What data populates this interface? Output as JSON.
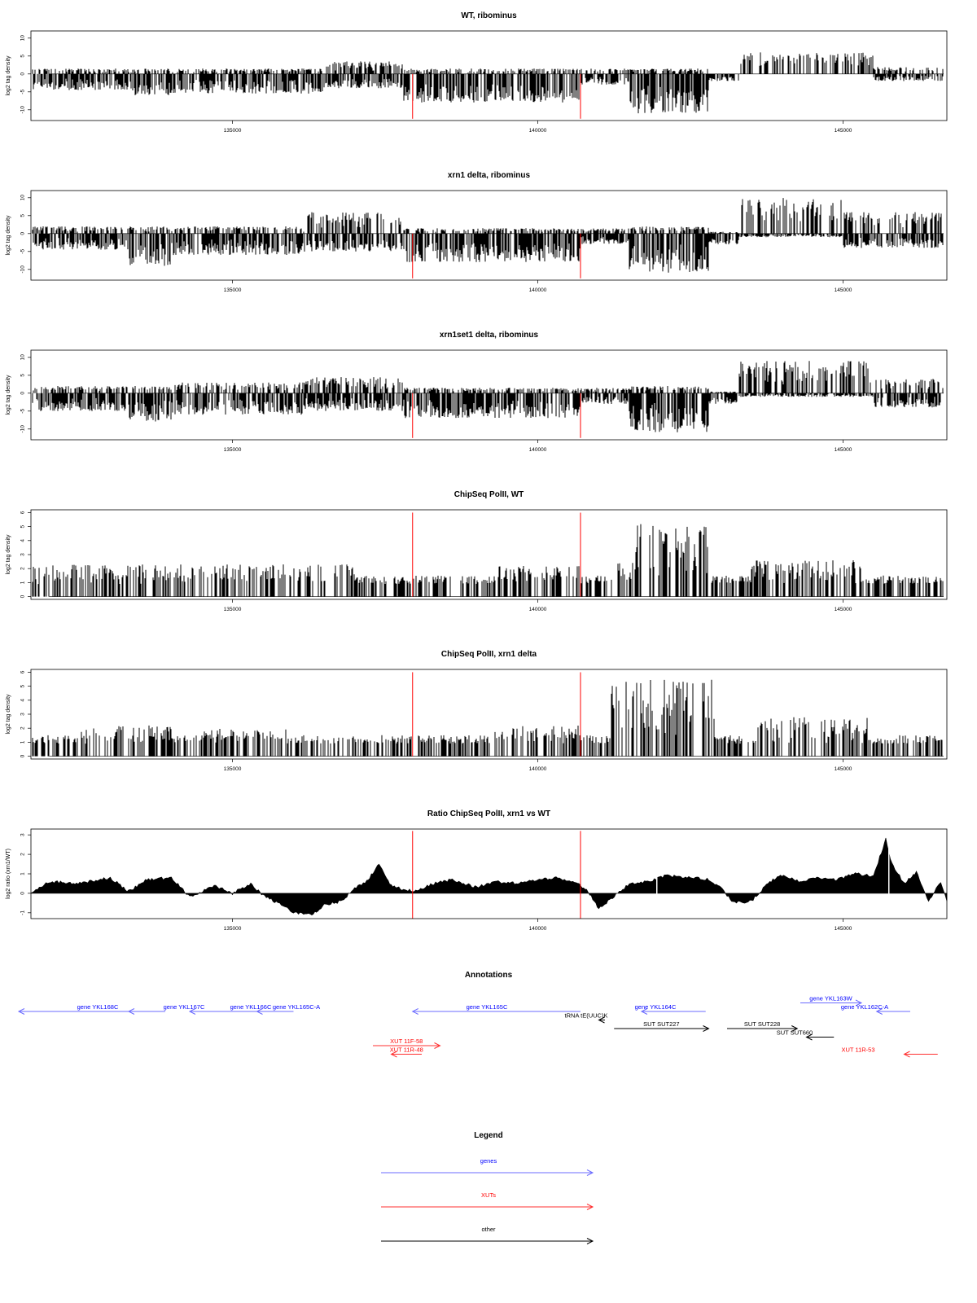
{
  "colors": {
    "gene": "#0000ff",
    "xut": "#ff0000",
    "other": "#000000",
    "marker": "#ff0000",
    "gene_arrow": "#6b6bff",
    "xut_arrow": "#ff3030"
  },
  "chart_data": [
    {
      "id": "wt_ribominus",
      "type": "bar",
      "title": "WT, ribominus",
      "ylabel": "log2 tag density",
      "xlim": [
        131700,
        146700
      ],
      "ylim": [
        -13,
        12
      ],
      "yticks": [
        -10,
        -5,
        0,
        5,
        10
      ],
      "xticks": [
        135000,
        140000,
        145000
      ],
      "xtick_labels": [
        "135000",
        "140000",
        "145000"
      ],
      "markers": [
        137950,
        140700
      ],
      "marker_range": [
        -12.5,
        0
      ],
      "profile_approx": [
        {
          "start": 131700,
          "end": 133300,
          "min": -4.5,
          "max": 1.5
        },
        {
          "start": 133300,
          "end": 134000,
          "min": -6,
          "max": 1.5
        },
        {
          "start": 134000,
          "end": 136500,
          "min": -5.5,
          "max": 1.5
        },
        {
          "start": 136500,
          "end": 137800,
          "min": -4,
          "max": 3.5
        },
        {
          "start": 137800,
          "end": 140700,
          "min": -8,
          "max": 1.5
        },
        {
          "start": 140700,
          "end": 141500,
          "min": -3,
          "max": 1.5
        },
        {
          "start": 141500,
          "end": 142800,
          "min": -11,
          "max": 1.5
        },
        {
          "start": 142800,
          "end": 143300,
          "min": -2,
          "max": 0
        },
        {
          "start": 143300,
          "end": 145500,
          "min": 0,
          "max": 6
        },
        {
          "start": 145500,
          "end": 146700,
          "min": -2,
          "max": 2
        }
      ]
    },
    {
      "id": "xrn1_ribominus",
      "type": "bar",
      "title": "xrn1 delta, ribominus",
      "ylabel": "log2 tag density",
      "xlim": [
        131700,
        146700
      ],
      "ylim": [
        -13,
        12
      ],
      "yticks": [
        -10,
        -5,
        0,
        5,
        10
      ],
      "xticks": [
        135000,
        140000,
        145000
      ],
      "xtick_labels": [
        "135000",
        "140000",
        "145000"
      ],
      "markers": [
        137950,
        140700
      ],
      "marker_range": [
        -12.5,
        0
      ],
      "profile_approx": [
        {
          "start": 131700,
          "end": 133300,
          "min": -4.5,
          "max": 2
        },
        {
          "start": 133300,
          "end": 134000,
          "min": -9,
          "max": 2
        },
        {
          "start": 134000,
          "end": 136200,
          "min": -6,
          "max": 2
        },
        {
          "start": 136200,
          "end": 137800,
          "min": -5,
          "max": 6
        },
        {
          "start": 137800,
          "end": 140700,
          "min": -8,
          "max": 1.5
        },
        {
          "start": 140700,
          "end": 141500,
          "min": -3,
          "max": 1.5
        },
        {
          "start": 141500,
          "end": 142800,
          "min": -11,
          "max": 2
        },
        {
          "start": 142800,
          "end": 143300,
          "min": -3,
          "max": 0.5
        },
        {
          "start": 143300,
          "end": 145000,
          "min": -1,
          "max": 10
        },
        {
          "start": 145000,
          "end": 146700,
          "min": -4,
          "max": 6
        }
      ]
    },
    {
      "id": "xrn1set1_ribominus",
      "type": "bar",
      "title": "xrn1set1 delta, ribominus",
      "ylabel": "log2 tag density",
      "xlim": [
        131700,
        146700
      ],
      "ylim": [
        -13,
        12
      ],
      "yticks": [
        -10,
        -5,
        0,
        5,
        10
      ],
      "xticks": [
        135000,
        140000,
        145000
      ],
      "xtick_labels": [
        "135000",
        "140000",
        "145000"
      ],
      "markers": [
        137950,
        140700
      ],
      "marker_range": [
        -12.5,
        0
      ],
      "profile_approx": [
        {
          "start": 131700,
          "end": 133300,
          "min": -5,
          "max": 2
        },
        {
          "start": 133300,
          "end": 134000,
          "min": -8,
          "max": 2
        },
        {
          "start": 134000,
          "end": 136200,
          "min": -6,
          "max": 3
        },
        {
          "start": 136200,
          "end": 137800,
          "min": -5,
          "max": 4.5
        },
        {
          "start": 137800,
          "end": 140700,
          "min": -7,
          "max": 1.5
        },
        {
          "start": 140700,
          "end": 141500,
          "min": -3,
          "max": 1.5
        },
        {
          "start": 141500,
          "end": 142800,
          "min": -11,
          "max": 2
        },
        {
          "start": 142800,
          "end": 143300,
          "min": -3,
          "max": 0.5
        },
        {
          "start": 143300,
          "end": 145500,
          "min": -1,
          "max": 9
        },
        {
          "start": 145500,
          "end": 146700,
          "min": -4,
          "max": 4
        }
      ]
    },
    {
      "id": "chipseq_wt",
      "type": "bar",
      "title": "ChipSeq PolII, WT",
      "ylabel": "log2 tag density",
      "xlim": [
        131700,
        146700
      ],
      "ylim": [
        -0.2,
        6.2
      ],
      "yticks": [
        0,
        1,
        2,
        3,
        4,
        5,
        6
      ],
      "xticks": [
        135000,
        140000,
        145000
      ],
      "xtick_labels": [
        "135000",
        "140000",
        "145000"
      ],
      "markers": [
        137950,
        140700
      ],
      "marker_range": [
        0,
        6
      ],
      "profile_approx": [
        {
          "start": 131700,
          "end": 137000,
          "min": 0,
          "max": 2.3
        },
        {
          "start": 137000,
          "end": 137850,
          "min": 0,
          "max": 1
        },
        {
          "start": 137850,
          "end": 138700,
          "min": 0,
          "max": 1.5
        },
        {
          "start": 138700,
          "end": 139300,
          "min": 0,
          "max": 0.8
        },
        {
          "start": 139300,
          "end": 140700,
          "min": 0,
          "max": 2.2
        },
        {
          "start": 140700,
          "end": 141200,
          "min": 0,
          "max": 0.8
        },
        {
          "start": 141200,
          "end": 141600,
          "min": 0,
          "max": 2.5
        },
        {
          "start": 141600,
          "end": 142800,
          "min": 0,
          "max": 5.2
        },
        {
          "start": 142800,
          "end": 143500,
          "min": 0,
          "max": 0.8
        },
        {
          "start": 143500,
          "end": 145300,
          "min": 0,
          "max": 2.6
        },
        {
          "start": 145300,
          "end": 146700,
          "min": 0,
          "max": 1
        }
      ]
    },
    {
      "id": "chipseq_xrn1",
      "type": "bar",
      "title": "ChipSeq PolII, xrn1 delta",
      "ylabel": "log2 tag density",
      "xlim": [
        131700,
        146700
      ],
      "ylim": [
        -0.2,
        6.2
      ],
      "yticks": [
        0,
        1,
        2,
        3,
        4,
        5,
        6
      ],
      "xticks": [
        135000,
        140000,
        145000
      ],
      "xtick_labels": [
        "135000",
        "140000",
        "145000"
      ],
      "markers": [
        137950,
        140700
      ],
      "marker_range": [
        0,
        6
      ],
      "profile_approx": [
        {
          "start": 131700,
          "end": 132500,
          "min": 0,
          "max": 1
        },
        {
          "start": 132500,
          "end": 134000,
          "min": 0,
          "max": 2.2
        },
        {
          "start": 134000,
          "end": 134500,
          "min": 0,
          "max": 0.8
        },
        {
          "start": 134500,
          "end": 135900,
          "min": 0,
          "max": 2
        },
        {
          "start": 135900,
          "end": 137800,
          "min": 0,
          "max": 1
        },
        {
          "start": 137800,
          "end": 139300,
          "min": 0,
          "max": 1
        },
        {
          "start": 139300,
          "end": 140700,
          "min": 0,
          "max": 2.2
        },
        {
          "start": 140700,
          "end": 141200,
          "min": 0,
          "max": 0.6
        },
        {
          "start": 141200,
          "end": 142900,
          "min": 0,
          "max": 5.5
        },
        {
          "start": 142900,
          "end": 143600,
          "min": 0,
          "max": 0.6
        },
        {
          "start": 143600,
          "end": 145400,
          "min": 0,
          "max": 2.8
        },
        {
          "start": 145400,
          "end": 146700,
          "min": 0,
          "max": 0.8
        }
      ]
    },
    {
      "id": "ratio_chipseq",
      "type": "area",
      "title": "Ratio ChipSeq PolII, xrn1 vs WT",
      "ylabel": "log2 ratio (xrn1/WT)",
      "xlim": [
        131700,
        146700
      ],
      "ylim": [
        -1.3,
        3.3
      ],
      "yticks": [
        -1,
        0,
        1,
        2,
        3
      ],
      "xticks": [
        135000,
        140000,
        145000
      ],
      "xtick_labels": [
        "135000",
        "140000",
        "145000"
      ],
      "markers": [
        137950,
        140700
      ],
      "marker_range": [
        -1.3,
        3.2
      ],
      "x": [
        131700,
        132000,
        132500,
        133000,
        133300,
        133600,
        134000,
        134300,
        134700,
        135000,
        135300,
        135500,
        135800,
        136000,
        136300,
        136500,
        136800,
        137000,
        137200,
        137400,
        137600,
        137800,
        138000,
        138300,
        138600,
        139000,
        139300,
        139700,
        140000,
        140300,
        140600,
        140800,
        141000,
        141200,
        141500,
        141800,
        142100,
        142500,
        142800,
        143000,
        143200,
        143500,
        143800,
        144000,
        144300,
        144600,
        144900,
        145200,
        145500,
        145700,
        145800,
        146000,
        146200,
        146400,
        146600,
        146700
      ],
      "y": [
        0,
        0.6,
        0.5,
        0.8,
        0.1,
        0.7,
        0.8,
        -0.2,
        0.4,
        0,
        0.5,
        -0.1,
        -0.6,
        -1,
        -1.1,
        -0.6,
        -0.4,
        0.3,
        0.6,
        1.5,
        0.4,
        0.2,
        0.1,
        0.5,
        0.7,
        0.3,
        0.6,
        0.5,
        0.7,
        0.8,
        0.6,
        0.2,
        -0.8,
        -0.3,
        0.5,
        0.6,
        0.9,
        0.8,
        0.7,
        0.3,
        -0.5,
        -0.4,
        0.6,
        0.9,
        0.6,
        0.8,
        0.7,
        1,
        0.9,
        2.8,
        1.5,
        0.5,
        1.1,
        -0.4,
        0.6,
        -0.4
      ]
    }
  ],
  "annotations": {
    "title": "Annotations",
    "xlim": [
      131700,
      146700
    ],
    "features": [
      {
        "label": "gene YKL168C",
        "category": "gene",
        "strand": "-",
        "start": 131500,
        "end": 133900,
        "row": 0
      },
      {
        "label": "gene YKL167C",
        "category": "gene",
        "strand": "-",
        "start": 133300,
        "end": 133900,
        "row": 0
      },
      {
        "label": "gene YKL166C",
        "category": "gene",
        "strand": "-",
        "start": 134300,
        "end": 135800,
        "row": 0
      },
      {
        "label": "gene YKL165C-A",
        "category": "gene",
        "strand": "-",
        "start": 135400,
        "end": 136000,
        "row": 0
      },
      {
        "label": "gene YKL165C",
        "category": "gene",
        "strand": "-",
        "start": 137950,
        "end": 140700,
        "row": 0
      },
      {
        "label": "gene YKL164C",
        "category": "gene",
        "strand": "-",
        "start": 141700,
        "end": 142750,
        "row": 0
      },
      {
        "label": "gene YKL163W",
        "category": "gene",
        "strand": "+",
        "start": 144300,
        "end": 145300,
        "row": -1
      },
      {
        "label": "gene YKL162C-A",
        "category": "gene",
        "strand": "-",
        "start": 145550,
        "end": 146100,
        "row": 0
      },
      {
        "label": "tRNA tE(UUC)K",
        "category": "other",
        "strand": "-",
        "start": 141000,
        "end": 141100,
        "row": 1
      },
      {
        "label": "SUT SUT227",
        "category": "other",
        "strand": "+",
        "start": 141250,
        "end": 142800,
        "row": 2
      },
      {
        "label": "SUT SUT228",
        "category": "other",
        "strand": "+",
        "start": 143100,
        "end": 144250,
        "row": 2
      },
      {
        "label": "SUT SUT660",
        "category": "other",
        "strand": "-",
        "start": 144400,
        "end": 144850,
        "row": 3
      },
      {
        "label": "XUT 11F-58",
        "category": "xut",
        "strand": "+",
        "start": 137300,
        "end": 138400,
        "row": 4
      },
      {
        "label": "XUT 11R-48",
        "category": "xut",
        "strand": "-",
        "start": 137600,
        "end": 138100,
        "row": 5
      },
      {
        "label": "XUT 11R-53",
        "category": "xut",
        "strand": "-",
        "start": 146000,
        "end": 146550,
        "row": 5
      }
    ]
  },
  "legend": {
    "title": "Legend",
    "items": [
      {
        "label": "genes",
        "category": "gene"
      },
      {
        "label": "XUTs",
        "category": "xut"
      },
      {
        "label": "other",
        "category": "other"
      }
    ]
  }
}
